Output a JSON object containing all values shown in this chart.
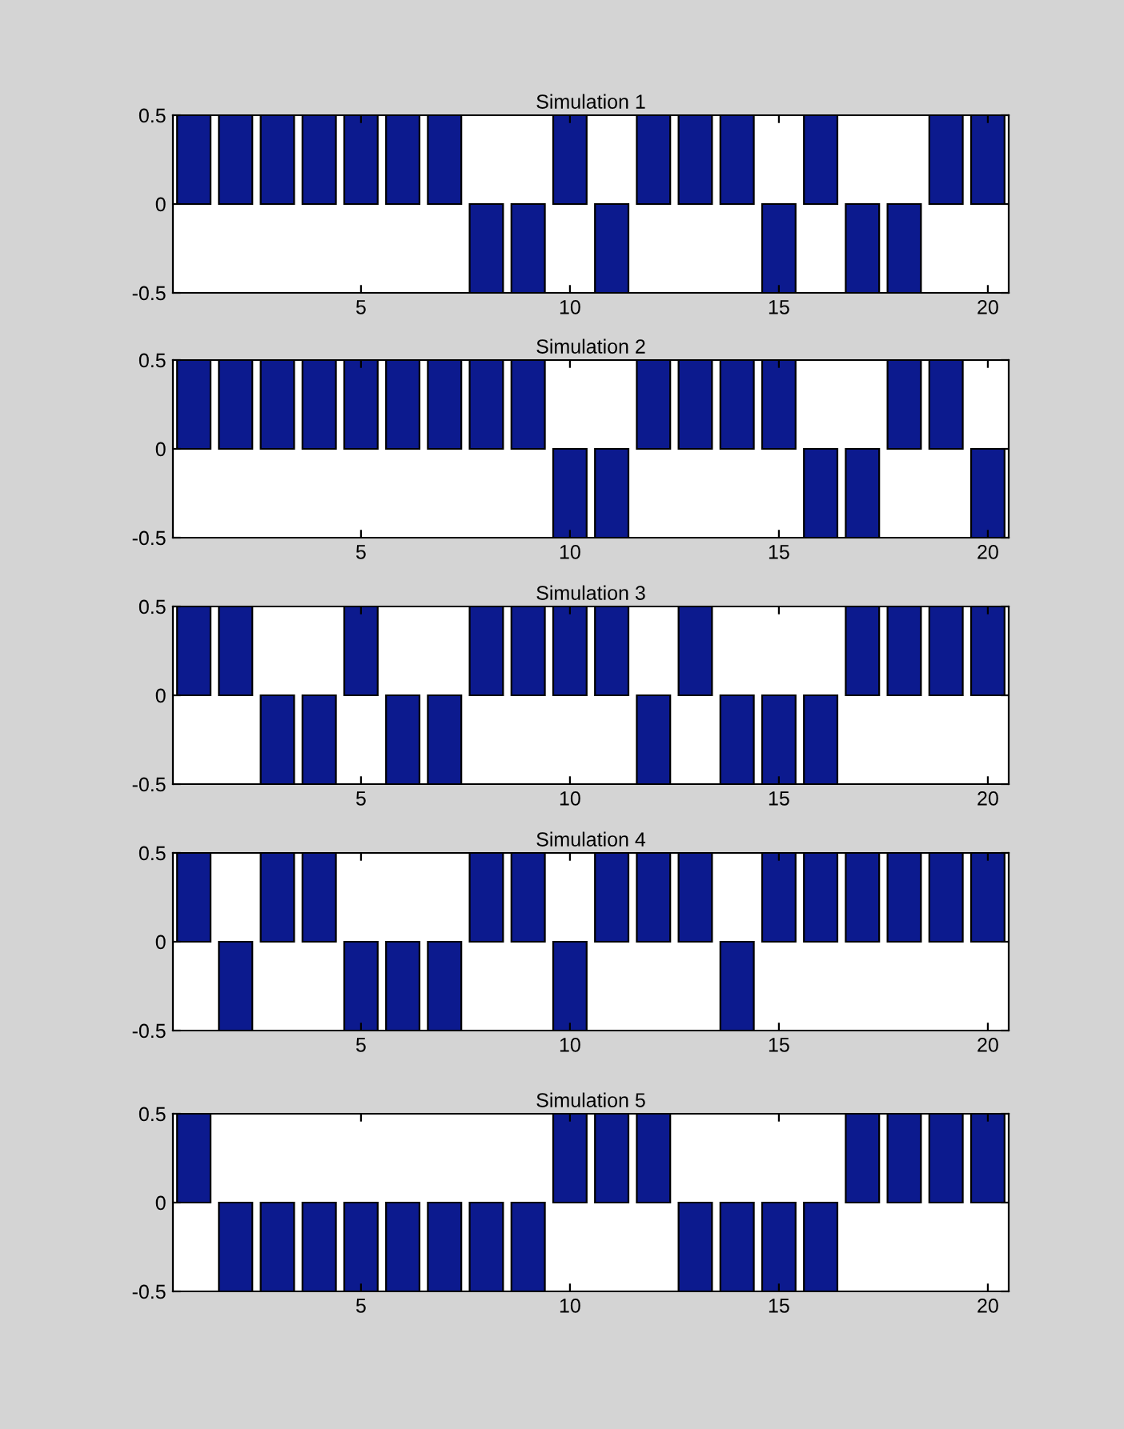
{
  "chart_data": [
    {
      "type": "bar",
      "title": "Simulation 1",
      "x": [
        1,
        2,
        3,
        4,
        5,
        6,
        7,
        8,
        9,
        10,
        11,
        12,
        13,
        14,
        15,
        16,
        17,
        18,
        19,
        20
      ],
      "values": [
        0.5,
        0.5,
        0.5,
        0.5,
        0.5,
        0.5,
        0.5,
        -0.5,
        -0.5,
        0.5,
        -0.5,
        0.5,
        0.5,
        0.5,
        -0.5,
        0.5,
        -0.5,
        -0.5,
        0.5,
        0.5
      ],
      "color": "#0c1a8e",
      "xlim": [
        0.5,
        20.5
      ],
      "xticks": [
        5,
        10,
        15,
        20
      ],
      "ylim": [
        -0.5,
        0.5
      ],
      "yticks": [
        -0.5,
        0,
        0.5
      ]
    },
    {
      "type": "bar",
      "title": "Simulation 2",
      "x": [
        1,
        2,
        3,
        4,
        5,
        6,
        7,
        8,
        9,
        10,
        11,
        12,
        13,
        14,
        15,
        16,
        17,
        18,
        19,
        20
      ],
      "values": [
        0.5,
        0.5,
        0.5,
        0.5,
        0.5,
        0.5,
        0.5,
        0.5,
        0.5,
        -0.5,
        -0.5,
        0.5,
        0.5,
        0.5,
        0.5,
        -0.5,
        -0.5,
        0.5,
        0.5,
        -0.5
      ],
      "color": "#0c1a8e",
      "xlim": [
        0.5,
        20.5
      ],
      "xticks": [
        5,
        10,
        15,
        20
      ],
      "ylim": [
        -0.5,
        0.5
      ],
      "yticks": [
        -0.5,
        0,
        0.5
      ]
    },
    {
      "type": "bar",
      "title": "Simulation 3",
      "x": [
        1,
        2,
        3,
        4,
        5,
        6,
        7,
        8,
        9,
        10,
        11,
        12,
        13,
        14,
        15,
        16,
        17,
        18,
        19,
        20
      ],
      "values": [
        0.5,
        0.5,
        -0.5,
        -0.5,
        0.5,
        -0.5,
        -0.5,
        0.5,
        0.5,
        0.5,
        0.5,
        -0.5,
        0.5,
        -0.5,
        -0.5,
        -0.5,
        0.5,
        0.5,
        0.5,
        0.5
      ],
      "color": "#0c1a8e",
      "xlim": [
        0.5,
        20.5
      ],
      "xticks": [
        5,
        10,
        15,
        20
      ],
      "ylim": [
        -0.5,
        0.5
      ],
      "yticks": [
        -0.5,
        0,
        0.5
      ]
    },
    {
      "type": "bar",
      "title": "Simulation 4",
      "x": [
        1,
        2,
        3,
        4,
        5,
        6,
        7,
        8,
        9,
        10,
        11,
        12,
        13,
        14,
        15,
        16,
        17,
        18,
        19,
        20
      ],
      "values": [
        0.5,
        -0.5,
        0.5,
        0.5,
        -0.5,
        -0.5,
        -0.5,
        0.5,
        0.5,
        -0.5,
        0.5,
        0.5,
        0.5,
        -0.5,
        0.5,
        0.5,
        0.5,
        0.5,
        0.5,
        0.5
      ],
      "color": "#0c1a8e",
      "xlim": [
        0.5,
        20.5
      ],
      "xticks": [
        5,
        10,
        15,
        20
      ],
      "ylim": [
        -0.5,
        0.5
      ],
      "yticks": [
        -0.5,
        0,
        0.5
      ]
    },
    {
      "type": "bar",
      "title": "Simulation 5",
      "x": [
        1,
        2,
        3,
        4,
        5,
        6,
        7,
        8,
        9,
        10,
        11,
        12,
        13,
        14,
        15,
        16,
        17,
        18,
        19,
        20
      ],
      "values": [
        0.5,
        -0.5,
        -0.5,
        -0.5,
        -0.5,
        -0.5,
        -0.5,
        -0.5,
        -0.5,
        0.5,
        0.5,
        0.5,
        -0.5,
        -0.5,
        -0.5,
        -0.5,
        0.5,
        0.5,
        0.5,
        0.5
      ],
      "color": "#0c1a8e",
      "xlim": [
        0.5,
        20.5
      ],
      "xticks": [
        5,
        10,
        15,
        20
      ],
      "ylim": [
        -0.5,
        0.5
      ],
      "yticks": [
        -0.5,
        0,
        0.5
      ]
    }
  ]
}
